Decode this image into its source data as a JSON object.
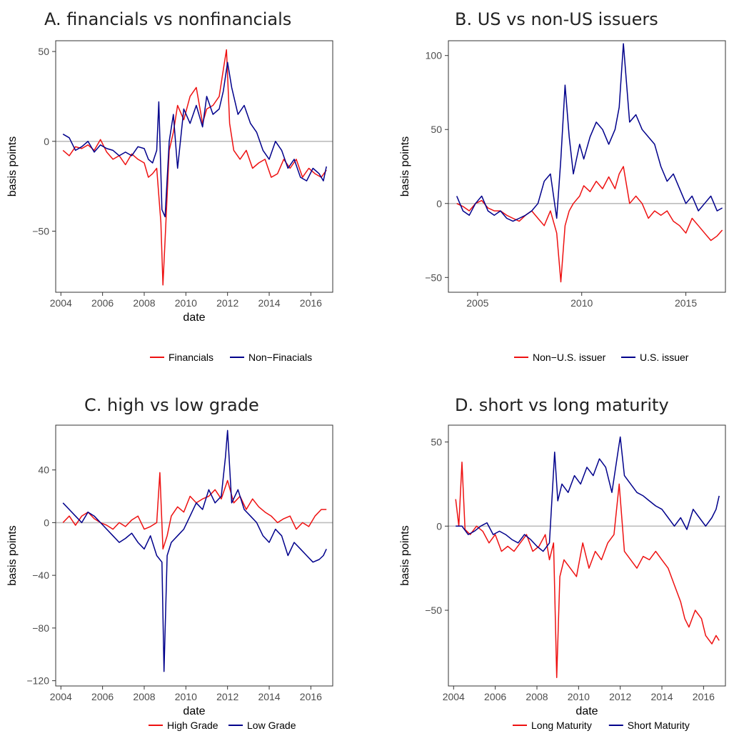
{
  "colors": {
    "red": "#ee1111",
    "navy": "#00008b",
    "zero_line": "#bdbdbd",
    "frame": "#333333"
  },
  "charts": [
    {
      "title": "A. financials vs nonfinancials",
      "type": "line",
      "xlabel": "date",
      "ylabel": "basis points",
      "xlim": [
        2003.75,
        2017.05
      ],
      "ylim": [
        -84,
        56
      ],
      "xticks": [
        2004,
        2006,
        2008,
        2010,
        2012,
        2014,
        2016
      ],
      "xtick_labels": [
        "2004",
        "2006",
        "2008",
        "2010",
        "2012",
        "2014",
        "2016"
      ],
      "yticks": [
        -50,
        0,
        50
      ],
      "ytick_labels": [
        "−50",
        "0",
        "50"
      ],
      "series": [
        {
          "name": "Financials",
          "color": "#ee1111",
          "x": [
            2004.1,
            2004.4,
            2004.7,
            2005.0,
            2005.3,
            2005.6,
            2005.9,
            2006.2,
            2006.5,
            2006.8,
            2007.1,
            2007.4,
            2007.7,
            2008.0,
            2008.2,
            2008.4,
            2008.6,
            2008.8,
            2008.9,
            2009.0,
            2009.2,
            2009.4,
            2009.6,
            2009.9,
            2010.2,
            2010.5,
            2010.8,
            2011.0,
            2011.3,
            2011.6,
            2011.8,
            2011.95,
            2012.1,
            2012.3,
            2012.6,
            2012.9,
            2013.2,
            2013.5,
            2013.8,
            2014.1,
            2014.4,
            2014.7,
            2015.0,
            2015.3,
            2015.6,
            2015.9,
            2016.2,
            2016.5,
            2016.75
          ],
          "y": [
            -5,
            -8,
            -3,
            -4,
            -2,
            -5,
            1,
            -6,
            -10,
            -8,
            -13,
            -7,
            -10,
            -12,
            -20,
            -18,
            -15,
            -45,
            -80,
            -55,
            -5,
            5,
            20,
            12,
            25,
            30,
            10,
            18,
            20,
            25,
            40,
            51,
            10,
            -5,
            -10,
            -5,
            -15,
            -12,
            -10,
            -20,
            -18,
            -10,
            -15,
            -10,
            -20,
            -15,
            -18,
            -20,
            -16
          ]
        },
        {
          "name": "Non−Finacials",
          "color": "#00008b",
          "x": [
            2004.1,
            2004.4,
            2004.7,
            2005.0,
            2005.3,
            2005.6,
            2005.9,
            2006.2,
            2006.5,
            2006.8,
            2007.1,
            2007.4,
            2007.7,
            2008.0,
            2008.2,
            2008.4,
            2008.6,
            2008.7,
            2008.85,
            2009.0,
            2009.2,
            2009.4,
            2009.6,
            2009.9,
            2010.2,
            2010.5,
            2010.8,
            2011.0,
            2011.3,
            2011.6,
            2011.8,
            2012.0,
            2012.2,
            2012.5,
            2012.8,
            2013.1,
            2013.4,
            2013.7,
            2014.0,
            2014.3,
            2014.6,
            2014.9,
            2015.2,
            2015.5,
            2015.8,
            2016.1,
            2016.4,
            2016.6,
            2016.75
          ],
          "y": [
            4,
            2,
            -5,
            -3,
            0,
            -6,
            -2,
            -4,
            -5,
            -8,
            -6,
            -8,
            -3,
            -4,
            -10,
            -12,
            -5,
            22,
            -38,
            -42,
            0,
            15,
            -15,
            18,
            10,
            20,
            8,
            25,
            15,
            18,
            28,
            44,
            30,
            15,
            20,
            10,
            5,
            -5,
            -10,
            0,
            -5,
            -15,
            -10,
            -20,
            -22,
            -15,
            -18,
            -22,
            -14
          ]
        }
      ],
      "legend": [
        {
          "label": "Financials",
          "color": "#ee1111"
        },
        {
          "label": "Non−Finacials",
          "color": "#00008b"
        }
      ]
    },
    {
      "title": "B. US vs non-US issuers",
      "type": "line",
      "xlabel": "",
      "ylabel": "basis points",
      "xlim": [
        2003.6,
        2016.9
      ],
      "ylim": [
        -60,
        110
      ],
      "xticks": [
        2005,
        2010,
        2015
      ],
      "xtick_labels": [
        "2005",
        "2010",
        "2015"
      ],
      "yticks": [
        -50,
        0,
        50,
        100
      ],
      "ytick_labels": [
        "−50",
        "0",
        "50",
        "100"
      ],
      "series": [
        {
          "name": "Non−U.S. issuer",
          "color": "#ee1111",
          "x": [
            2004.0,
            2004.3,
            2004.6,
            2004.9,
            2005.2,
            2005.5,
            2005.8,
            2006.1,
            2006.4,
            2006.7,
            2007.0,
            2007.3,
            2007.6,
            2007.9,
            2008.2,
            2008.5,
            2008.8,
            2009.0,
            2009.2,
            2009.4,
            2009.6,
            2009.9,
            2010.1,
            2010.4,
            2010.7,
            2011.0,
            2011.3,
            2011.6,
            2011.8,
            2012.0,
            2012.3,
            2012.6,
            2012.9,
            2013.2,
            2013.5,
            2013.8,
            2014.1,
            2014.4,
            2014.7,
            2015.0,
            2015.3,
            2015.6,
            2015.9,
            2016.2,
            2016.5,
            2016.75
          ],
          "y": [
            0,
            -2,
            -5,
            0,
            2,
            -3,
            -5,
            -5,
            -8,
            -10,
            -12,
            -8,
            -5,
            -10,
            -15,
            -5,
            -20,
            -53,
            -15,
            -5,
            0,
            5,
            12,
            8,
            15,
            10,
            18,
            10,
            20,
            25,
            0,
            5,
            0,
            -10,
            -5,
            -8,
            -5,
            -12,
            -15,
            -20,
            -10,
            -15,
            -20,
            -25,
            -22,
            -18
          ]
        },
        {
          "name": "U.S. issuer",
          "color": "#00008b",
          "x": [
            2004.0,
            2004.3,
            2004.6,
            2004.9,
            2005.2,
            2005.5,
            2005.8,
            2006.1,
            2006.4,
            2006.7,
            2007.0,
            2007.3,
            2007.6,
            2007.9,
            2008.2,
            2008.5,
            2008.8,
            2009.0,
            2009.2,
            2009.4,
            2009.6,
            2009.9,
            2010.1,
            2010.4,
            2010.7,
            2011.0,
            2011.3,
            2011.6,
            2011.8,
            2012.0,
            2012.3,
            2012.6,
            2012.9,
            2013.2,
            2013.5,
            2013.8,
            2014.1,
            2014.4,
            2014.7,
            2015.0,
            2015.3,
            2015.6,
            2015.9,
            2016.2,
            2016.5,
            2016.75
          ],
          "y": [
            5,
            -5,
            -8,
            0,
            5,
            -5,
            -8,
            -5,
            -10,
            -12,
            -10,
            -8,
            -5,
            0,
            15,
            20,
            -10,
            30,
            80,
            45,
            20,
            40,
            30,
            45,
            55,
            50,
            40,
            50,
            65,
            108,
            55,
            60,
            50,
            45,
            40,
            25,
            15,
            20,
            10,
            0,
            5,
            -5,
            0,
            5,
            -5,
            -3
          ]
        }
      ],
      "legend": [
        {
          "label": "Non−U.S. issuer",
          "color": "#ee1111"
        },
        {
          "label": "U.S. issuer",
          "color": "#00008b"
        }
      ]
    },
    {
      "title": "C. high vs low grade",
      "type": "line",
      "xlabel": "date",
      "ylabel": "basis points",
      "xlim": [
        2003.75,
        2017.05
      ],
      "ylim": [
        -124,
        74
      ],
      "xticks": [
        2004,
        2006,
        2008,
        2010,
        2012,
        2014,
        2016
      ],
      "xtick_labels": [
        "2004",
        "2006",
        "2008",
        "2010",
        "2012",
        "2014",
        "2016"
      ],
      "yticks": [
        -120,
        -80,
        -40,
        0,
        40
      ],
      "ytick_labels": [
        "−120",
        "−80",
        "−40",
        "0",
        "40"
      ],
      "series": [
        {
          "name": "High Grade",
          "color": "#ee1111",
          "x": [
            2004.1,
            2004.4,
            2004.7,
            2005.0,
            2005.3,
            2005.6,
            2005.9,
            2006.2,
            2006.5,
            2006.8,
            2007.1,
            2007.4,
            2007.7,
            2008.0,
            2008.3,
            2008.6,
            2008.75,
            2008.9,
            2009.1,
            2009.3,
            2009.6,
            2009.9,
            2010.2,
            2010.5,
            2010.8,
            2011.1,
            2011.4,
            2011.7,
            2012.0,
            2012.3,
            2012.6,
            2012.9,
            2013.2,
            2013.5,
            2013.8,
            2014.1,
            2014.4,
            2014.7,
            2015.0,
            2015.3,
            2015.6,
            2015.9,
            2016.2,
            2016.5,
            2016.75
          ],
          "y": [
            0,
            5,
            -2,
            5,
            8,
            3,
            0,
            -2,
            -5,
            0,
            -3,
            2,
            5,
            -5,
            -3,
            0,
            38,
            -20,
            -10,
            5,
            12,
            8,
            20,
            15,
            18,
            20,
            25,
            18,
            32,
            15,
            20,
            10,
            18,
            12,
            8,
            5,
            0,
            3,
            5,
            -5,
            0,
            -3,
            5,
            10,
            10
          ]
        },
        {
          "name": "Low Grade",
          "color": "#00008b",
          "x": [
            2004.1,
            2004.4,
            2004.7,
            2005.0,
            2005.3,
            2005.6,
            2005.9,
            2006.2,
            2006.5,
            2006.8,
            2007.1,
            2007.4,
            2007.7,
            2008.0,
            2008.3,
            2008.6,
            2008.85,
            2008.95,
            2009.1,
            2009.3,
            2009.6,
            2009.9,
            2010.2,
            2010.5,
            2010.8,
            2011.1,
            2011.4,
            2011.7,
            2011.9,
            2012.0,
            2012.2,
            2012.5,
            2012.8,
            2013.1,
            2013.4,
            2013.7,
            2014.0,
            2014.3,
            2014.6,
            2014.9,
            2015.2,
            2015.5,
            2015.8,
            2016.1,
            2016.4,
            2016.6,
            2016.75
          ],
          "y": [
            15,
            10,
            5,
            0,
            8,
            5,
            0,
            -5,
            -10,
            -15,
            -12,
            -8,
            -15,
            -20,
            -10,
            -25,
            -30,
            -113,
            -25,
            -15,
            -10,
            -5,
            5,
            15,
            10,
            25,
            15,
            20,
            50,
            70,
            15,
            25,
            10,
            5,
            0,
            -10,
            -15,
            -5,
            -10,
            -25,
            -15,
            -20,
            -25,
            -30,
            -28,
            -25,
            -20
          ]
        }
      ],
      "legend": [
        {
          "label": "High Grade",
          "color": "#ee1111"
        },
        {
          "label": "Low Grade",
          "color": "#00008b"
        }
      ]
    },
    {
      "title": "D. short vs long maturity",
      "type": "line",
      "xlabel": "date",
      "ylabel": "basis points",
      "xlim": [
        2003.75,
        2017.05
      ],
      "ylim": [
        -95,
        60
      ],
      "xticks": [
        2004,
        2006,
        2008,
        2010,
        2012,
        2014,
        2016
      ],
      "xtick_labels": [
        "2004",
        "2006",
        "2008",
        "2010",
        "2012",
        "2014",
        "2016"
      ],
      "yticks": [
        -50,
        0,
        50
      ],
      "ytick_labels": [
        "−50",
        "0",
        "50"
      ],
      "series": [
        {
          "name": "Long Maturity",
          "color": "#ee1111",
          "x": [
            2004.1,
            2004.25,
            2004.4,
            2004.55,
            2004.8,
            2005.1,
            2005.4,
            2005.7,
            2006.0,
            2006.3,
            2006.6,
            2006.9,
            2007.2,
            2007.5,
            2007.8,
            2008.1,
            2008.4,
            2008.6,
            2008.8,
            2008.95,
            2009.1,
            2009.3,
            2009.6,
            2009.9,
            2010.2,
            2010.5,
            2010.8,
            2011.1,
            2011.4,
            2011.7,
            2011.95,
            2012.2,
            2012.5,
            2012.8,
            2013.1,
            2013.4,
            2013.7,
            2014.0,
            2014.3,
            2014.6,
            2014.9,
            2015.1,
            2015.3,
            2015.6,
            2015.9,
            2016.1,
            2016.4,
            2016.6,
            2016.75
          ],
          "y": [
            16,
            0,
            38,
            -2,
            -5,
            0,
            -3,
            -10,
            -5,
            -15,
            -12,
            -15,
            -10,
            -5,
            -15,
            -12,
            -5,
            -20,
            -10,
            -90,
            -30,
            -20,
            -25,
            -30,
            -10,
            -25,
            -15,
            -20,
            -10,
            -5,
            25,
            -15,
            -20,
            -25,
            -18,
            -20,
            -15,
            -20,
            -25,
            -35,
            -45,
            -55,
            -60,
            -50,
            -55,
            -65,
            -70,
            -65,
            -68
          ]
        },
        {
          "name": "Short Maturity",
          "color": "#00008b",
          "x": [
            2004.1,
            2004.4,
            2004.7,
            2005.0,
            2005.3,
            2005.6,
            2005.9,
            2006.2,
            2006.5,
            2006.8,
            2007.1,
            2007.4,
            2007.7,
            2008.0,
            2008.3,
            2008.6,
            2008.85,
            2009.0,
            2009.2,
            2009.5,
            2009.8,
            2010.1,
            2010.4,
            2010.7,
            2011.0,
            2011.3,
            2011.6,
            2011.9,
            2012.0,
            2012.2,
            2012.5,
            2012.8,
            2013.1,
            2013.4,
            2013.7,
            2014.0,
            2014.3,
            2014.6,
            2014.9,
            2015.2,
            2015.5,
            2015.8,
            2016.1,
            2016.4,
            2016.6,
            2016.75
          ],
          "y": [
            0,
            0,
            -5,
            -3,
            0,
            2,
            -5,
            -3,
            -5,
            -8,
            -10,
            -5,
            -8,
            -12,
            -15,
            -10,
            44,
            15,
            25,
            20,
            30,
            25,
            35,
            30,
            40,
            35,
            20,
            45,
            53,
            30,
            25,
            20,
            18,
            15,
            12,
            10,
            5,
            0,
            5,
            -2,
            10,
            5,
            0,
            5,
            10,
            18
          ]
        }
      ],
      "legend": [
        {
          "label": "Long Maturity",
          "color": "#ee1111"
        },
        {
          "label": "Short Maturity",
          "color": "#00008b"
        }
      ]
    }
  ]
}
